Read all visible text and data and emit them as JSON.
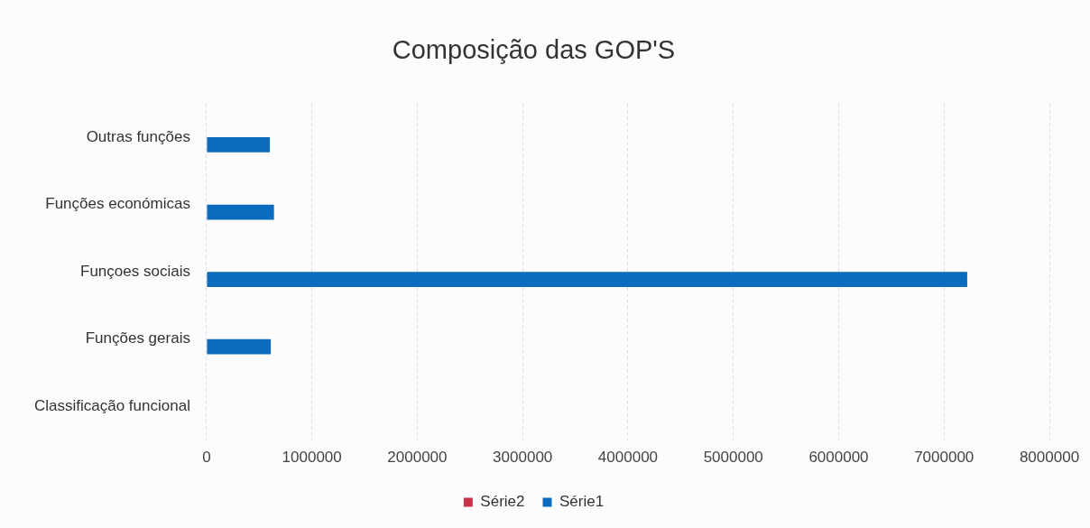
{
  "chart_data": {
    "type": "bar",
    "orientation": "horizontal",
    "title": "Composição das GOP'S",
    "categories": [
      "Outras funções",
      "Funções económicas",
      "Funçoes sociais",
      "Funções gerais",
      "Classificação funcional"
    ],
    "series": [
      {
        "name": "Série2",
        "color": "#c8314a",
        "values": [
          null,
          null,
          null,
          null,
          null
        ]
      },
      {
        "name": "Série1",
        "color": "#0b6cbf",
        "values": [
          600000,
          640000,
          7220000,
          610000,
          null
        ]
      }
    ],
    "xlim": [
      0,
      8000000
    ],
    "xticks": [
      0,
      1000000,
      2000000,
      3000000,
      4000000,
      5000000,
      6000000,
      7000000,
      8000000
    ],
    "grid": "x",
    "legend": "bottom"
  }
}
